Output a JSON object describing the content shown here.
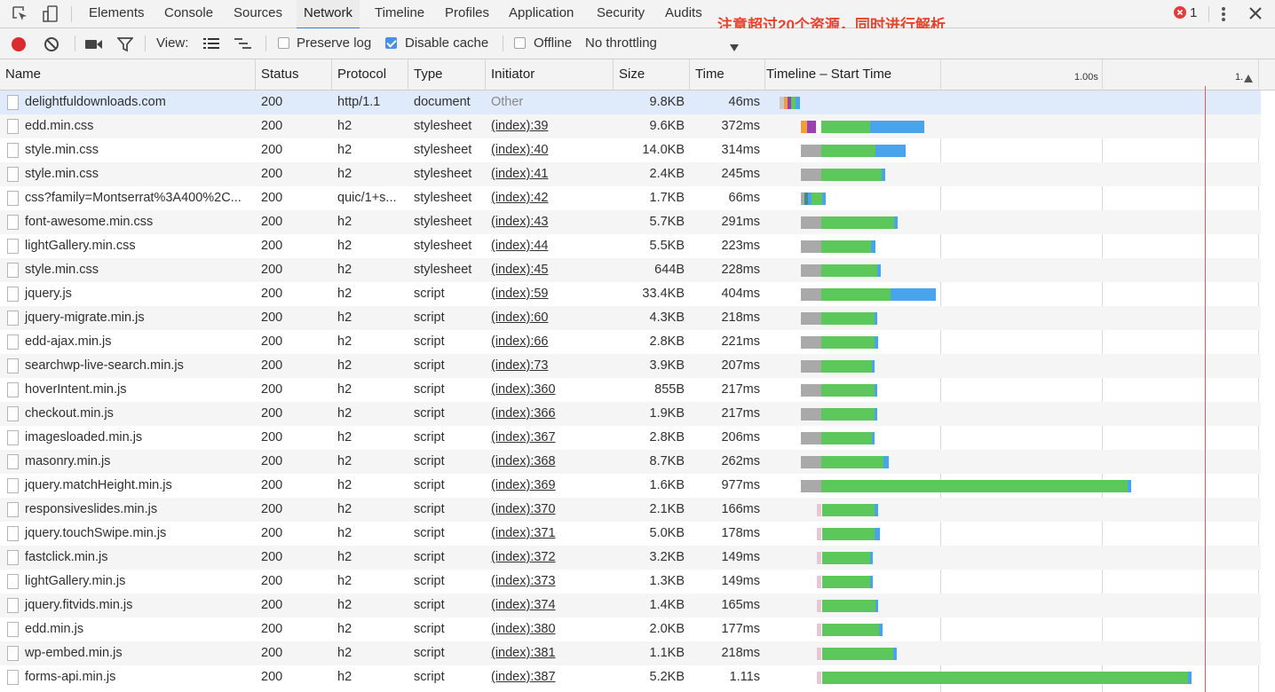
{
  "tabs": [
    "Elements",
    "Console",
    "Sources",
    "Network",
    "Timeline",
    "Profiles",
    "Application",
    "Security",
    "Audits"
  ],
  "active_tab": "Network",
  "error_count": "1",
  "annotation": "注意超过20个资源，同时进行解析",
  "toolbar": {
    "view_label": "View:",
    "preserve_log": "Preserve log",
    "disable_cache": "Disable cache",
    "offline": "Offline",
    "throttling": "No throttling"
  },
  "columns": [
    "Name",
    "Status",
    "Protocol",
    "Type",
    "Initiator",
    "Size",
    "Time",
    "Timeline – Start Time"
  ],
  "timeline_ticks": [
    "1.00s",
    "1."
  ],
  "colors": {
    "waiting": "#5cc85c",
    "download": "#4aa4ec",
    "queued": "#a9a9a9",
    "accent": "#3879d9",
    "record": "#d92c2c",
    "annotation": "#e8432e"
  },
  "rows": [
    {
      "name": "delightfuldownloads.com",
      "status": "200",
      "protocol": "http/1.1",
      "type": "document",
      "initiator": "Other",
      "size": "9.8KB",
      "time": "46ms"
    },
    {
      "name": "edd.min.css",
      "status": "200",
      "protocol": "h2",
      "type": "stylesheet",
      "initiator": "(index):39",
      "size": "9.6KB",
      "time": "372ms"
    },
    {
      "name": "style.min.css",
      "status": "200",
      "protocol": "h2",
      "type": "stylesheet",
      "initiator": "(index):40",
      "size": "14.0KB",
      "time": "314ms"
    },
    {
      "name": "style.min.css",
      "status": "200",
      "protocol": "h2",
      "type": "stylesheet",
      "initiator": "(index):41",
      "size": "2.4KB",
      "time": "245ms"
    },
    {
      "name": "css?family=Montserrat%3A400%2C...",
      "status": "200",
      "protocol": "quic/1+s...",
      "type": "stylesheet",
      "initiator": "(index):42",
      "size": "1.7KB",
      "time": "66ms"
    },
    {
      "name": "font-awesome.min.css",
      "status": "200",
      "protocol": "h2",
      "type": "stylesheet",
      "initiator": "(index):43",
      "size": "5.7KB",
      "time": "291ms"
    },
    {
      "name": "lightGallery.min.css",
      "status": "200",
      "protocol": "h2",
      "type": "stylesheet",
      "initiator": "(index):44",
      "size": "5.5KB",
      "time": "223ms"
    },
    {
      "name": "style.min.css",
      "status": "200",
      "protocol": "h2",
      "type": "stylesheet",
      "initiator": "(index):45",
      "size": "644B",
      "time": "228ms"
    },
    {
      "name": "jquery.js",
      "status": "200",
      "protocol": "h2",
      "type": "script",
      "initiator": "(index):59",
      "size": "33.4KB",
      "time": "404ms"
    },
    {
      "name": "jquery-migrate.min.js",
      "status": "200",
      "protocol": "h2",
      "type": "script",
      "initiator": "(index):60",
      "size": "4.3KB",
      "time": "218ms"
    },
    {
      "name": "edd-ajax.min.js",
      "status": "200",
      "protocol": "h2",
      "type": "script",
      "initiator": "(index):66",
      "size": "2.8KB",
      "time": "221ms"
    },
    {
      "name": "searchwp-live-search.min.js",
      "status": "200",
      "protocol": "h2",
      "type": "script",
      "initiator": "(index):73",
      "size": "3.9KB",
      "time": "207ms"
    },
    {
      "name": "hoverIntent.min.js",
      "status": "200",
      "protocol": "h2",
      "type": "script",
      "initiator": "(index):360",
      "size": "855B",
      "time": "217ms"
    },
    {
      "name": "checkout.min.js",
      "status": "200",
      "protocol": "h2",
      "type": "script",
      "initiator": "(index):366",
      "size": "1.9KB",
      "time": "217ms"
    },
    {
      "name": "imagesloaded.min.js",
      "status": "200",
      "protocol": "h2",
      "type": "script",
      "initiator": "(index):367",
      "size": "2.8KB",
      "time": "206ms"
    },
    {
      "name": "masonry.min.js",
      "status": "200",
      "protocol": "h2",
      "type": "script",
      "initiator": "(index):368",
      "size": "8.7KB",
      "time": "262ms"
    },
    {
      "name": "jquery.matchHeight.min.js",
      "status": "200",
      "protocol": "h2",
      "type": "script",
      "initiator": "(index):369",
      "size": "1.6KB",
      "time": "977ms"
    },
    {
      "name": "responsiveslides.min.js",
      "status": "200",
      "protocol": "h2",
      "type": "script",
      "initiator": "(index):370",
      "size": "2.1KB",
      "time": "166ms"
    },
    {
      "name": "jquery.touchSwipe.min.js",
      "status": "200",
      "protocol": "h2",
      "type": "script",
      "initiator": "(index):371",
      "size": "5.0KB",
      "time": "178ms"
    },
    {
      "name": "fastclick.min.js",
      "status": "200",
      "protocol": "h2",
      "type": "script",
      "initiator": "(index):372",
      "size": "3.2KB",
      "time": "149ms"
    },
    {
      "name": "lightGallery.min.js",
      "status": "200",
      "protocol": "h2",
      "type": "script",
      "initiator": "(index):373",
      "size": "1.3KB",
      "time": "149ms"
    },
    {
      "name": "jquery.fitvids.min.js",
      "status": "200",
      "protocol": "h2",
      "type": "script",
      "initiator": "(index):374",
      "size": "1.4KB",
      "time": "165ms"
    },
    {
      "name": "edd.min.js",
      "status": "200",
      "protocol": "h2",
      "type": "script",
      "initiator": "(index):380",
      "size": "2.0KB",
      "time": "177ms"
    },
    {
      "name": "wp-embed.min.js",
      "status": "200",
      "protocol": "h2",
      "type": "script",
      "initiator": "(index):381",
      "size": "1.1KB",
      "time": "218ms"
    },
    {
      "name": "forms-api.min.js",
      "status": "200",
      "protocol": "h2",
      "type": "script",
      "initiator": "(index):387",
      "size": "5.2KB",
      "time": "1.11s"
    }
  ]
}
